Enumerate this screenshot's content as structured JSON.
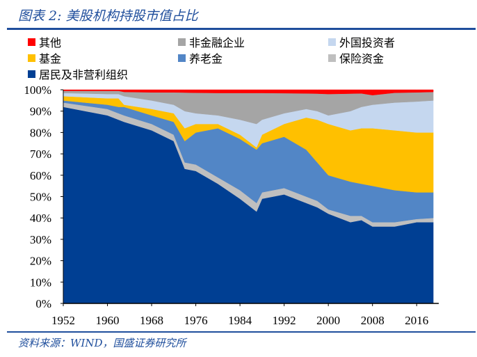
{
  "title": "图表 2:  美股机构持股市值占比",
  "source": "资料来源：WIND，国盛证券研究所",
  "chart_data": {
    "type": "area",
    "stacked": true,
    "title": "美股机构持股市值占比",
    "xlabel": "",
    "ylabel": "",
    "xlim": [
      1952,
      2020
    ],
    "ylim": [
      0,
      100
    ],
    "x_ticks": [
      "1952",
      "1960",
      "1968",
      "1976",
      "1984",
      "1992",
      "2000",
      "2008",
      "2016"
    ],
    "y_ticks": [
      "0%",
      "10%",
      "20%",
      "30%",
      "40%",
      "50%",
      "60%",
      "70%",
      "80%",
      "90%",
      "100%"
    ],
    "legend_position": "top",
    "x": [
      1952,
      1960,
      1962,
      1963,
      1968,
      1972,
      1974,
      1976,
      1980,
      1984,
      1987,
      1988,
      1992,
      1996,
      1998,
      2000,
      2004,
      2006,
      2008,
      2012,
      2016,
      2019
    ],
    "series": [
      {
        "name": "居民及非营利组织",
        "color": "#003f93",
        "values": [
          92,
          88,
          86,
          85,
          81,
          76,
          63,
          62,
          56,
          49,
          43,
          49,
          51,
          47,
          45,
          42,
          38,
          39,
          36,
          36,
          38,
          38
        ]
      },
      {
        "name": "保险资金",
        "color": "#bfbfbf",
        "values": [
          2,
          3,
          3,
          3,
          3,
          3,
          3,
          3,
          3,
          4,
          4,
          3,
          3,
          3,
          3,
          2,
          3,
          2,
          2,
          2,
          1.5,
          2
        ]
      },
      {
        "name": "养老金",
        "color": "#5286c6",
        "values": [
          1,
          2,
          3,
          4,
          4,
          6,
          10,
          15,
          23,
          24,
          25,
          23,
          24,
          22,
          18,
          16,
          16,
          15,
          17,
          15,
          12.5,
          12
        ]
      },
      {
        "name": "基金",
        "color": "#ffc000",
        "values": [
          2,
          3,
          4,
          1,
          3,
          4,
          6,
          4,
          2,
          2,
          1,
          4,
          6,
          15,
          20,
          24,
          24,
          26,
          27,
          28,
          28,
          28
        ]
      },
      {
        "name": "外国投资者",
        "color": "#c5d7ef",
        "values": [
          1.5,
          2,
          2,
          4,
          4,
          4,
          8,
          5,
          4,
          7,
          11,
          7,
          5,
          4,
          4,
          4,
          9,
          10,
          11,
          13,
          14.5,
          15
        ]
      },
      {
        "name": "非金融企业",
        "color": "#a5a5a5",
        "values": [
          1,
          1.5,
          1.5,
          2,
          3.8,
          5.8,
          8.7,
          9.6,
          10.5,
          12.5,
          14.5,
          12.5,
          9.4,
          7.3,
          8.2,
          10,
          8.2,
          6.3,
          4.5,
          4.6,
          4.3,
          4
        ]
      },
      {
        "name": "其他",
        "color": "#ff0000",
        "values": [
          0.5,
          0.5,
          0.5,
          1,
          1.2,
          1.2,
          1.3,
          1.4,
          1.5,
          1.5,
          1.5,
          1.5,
          1.6,
          1.7,
          1.8,
          2,
          1.8,
          1.7,
          2.5,
          1.4,
          1.2,
          1
        ]
      }
    ],
    "legend_order": [
      "其他",
      "非金融企业",
      "外国投资者",
      "基金",
      "养老金",
      "保险资金",
      "居民及非营利组织"
    ]
  }
}
